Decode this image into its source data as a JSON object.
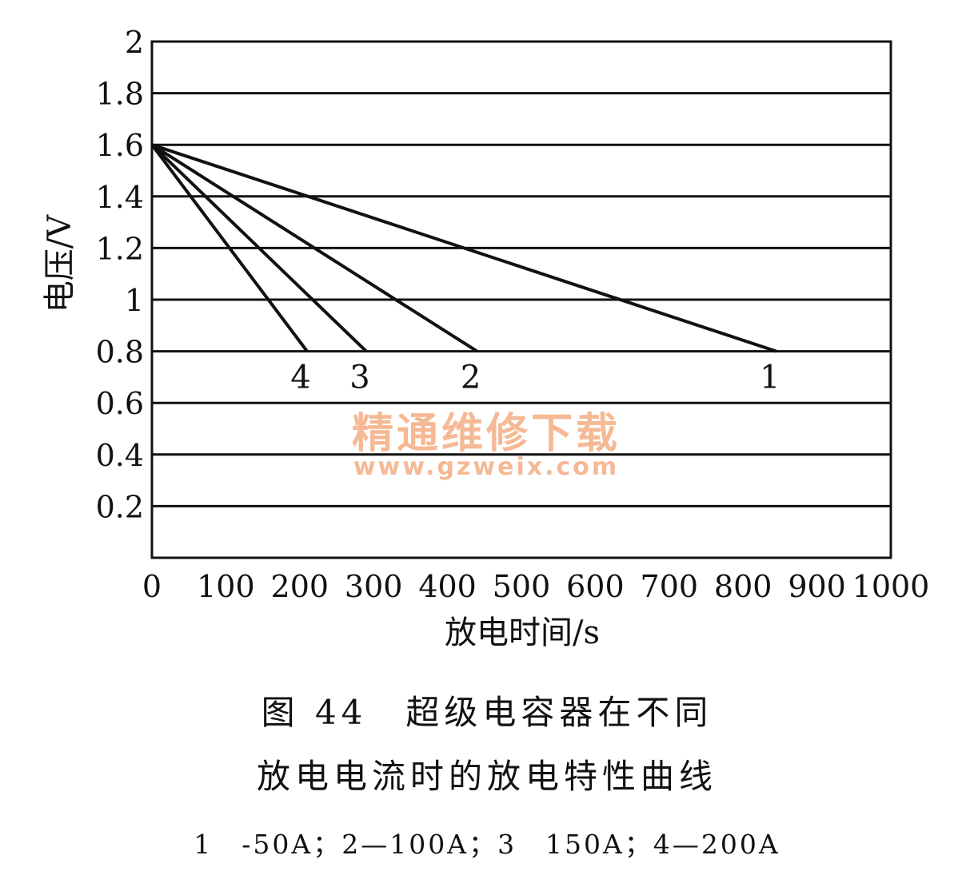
{
  "chart_data": {
    "type": "line",
    "xlabel": "放电时间/s",
    "ylabel": "电压/V",
    "xlim": [
      0,
      1000
    ],
    "ylim": [
      0,
      2
    ],
    "xticks": [
      "0",
      "100",
      "200",
      "300",
      "400",
      "500",
      "600",
      "700",
      "800",
      "900",
      "1000"
    ],
    "yticks": [
      "0.2",
      "0.4",
      "0.6",
      "0.8",
      "1",
      "1.2",
      "1.4",
      "1.6",
      "1.8",
      "2"
    ],
    "grid": "horizontal",
    "series": [
      {
        "name": "1",
        "x": [
          0,
          845
        ],
        "y": [
          1.6,
          0.8
        ]
      },
      {
        "name": "2",
        "x": [
          0,
          440
        ],
        "y": [
          1.6,
          0.8
        ]
      },
      {
        "name": "3",
        "x": [
          0,
          290
        ],
        "y": [
          1.6,
          0.8
        ]
      },
      {
        "name": "4",
        "x": [
          0,
          210
        ],
        "y": [
          1.6,
          0.8
        ]
      }
    ]
  },
  "caption": {
    "line1": "图 44　超级电容器在不同",
    "line2": "放电电流时的放电特性曲线",
    "legend": "1　-50A；2—100A；3　150A；4—200A"
  },
  "watermark": {
    "title": "精通维修下载",
    "url": "www.gzweix.com",
    "color": "#f5b995"
  }
}
